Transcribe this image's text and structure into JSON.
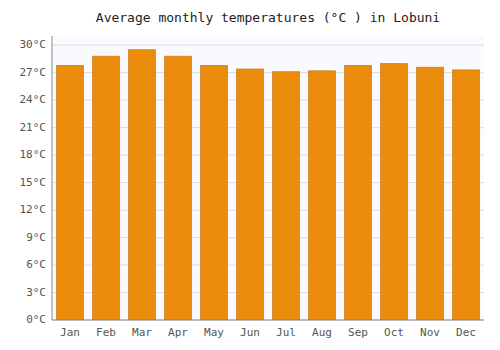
{
  "chart_data": {
    "type": "bar",
    "title": "Average monthly temperatures (°C ) in Lobuni",
    "categories": [
      "Jan",
      "Feb",
      "Mar",
      "Apr",
      "May",
      "Jun",
      "Jul",
      "Aug",
      "Sep",
      "Oct",
      "Nov",
      "Dec"
    ],
    "values": [
      27.8,
      28.8,
      29.5,
      28.8,
      27.8,
      27.4,
      27.1,
      27.2,
      27.8,
      28.0,
      27.6,
      27.3
    ],
    "color": "#EB8C0D",
    "ylim": [
      0,
      31
    ],
    "yticks": [
      {
        "value": 0,
        "label": "0°C"
      },
      {
        "value": 3,
        "label": "3°C"
      },
      {
        "value": 6,
        "label": "6°C"
      },
      {
        "value": 9,
        "label": "9°C"
      },
      {
        "value": 12,
        "label": "12°C"
      },
      {
        "value": 15,
        "label": "15°C"
      },
      {
        "value": 18,
        "label": "18°C"
      },
      {
        "value": 21,
        "label": "21°C"
      },
      {
        "value": 24,
        "label": "24°C"
      },
      {
        "value": 27,
        "label": "27°C"
      },
      {
        "value": 30,
        "label": "30°C"
      }
    ],
    "grid": true
  }
}
